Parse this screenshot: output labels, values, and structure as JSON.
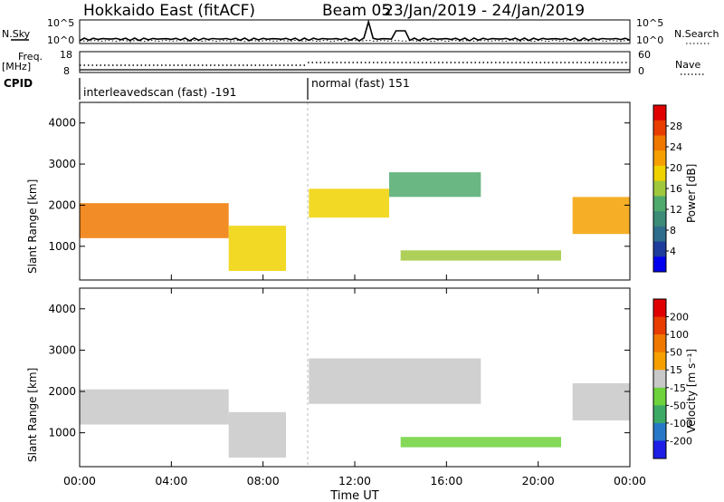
{
  "header": {
    "title": "Hokkaido East (fitACF)",
    "beam": "Beam 05",
    "date_range": "23/Jan/2019 - 24/Jan/2019"
  },
  "top_panel": {
    "left_label": "N.Sky",
    "right_label": "N.Search",
    "left_ticks": [
      "10^5",
      "10^0"
    ],
    "right_ticks": [
      "10^5",
      "10^0"
    ]
  },
  "freq_panel": {
    "left_label_1": "Freq.",
    "left_label_2": "[MHz]",
    "left_ticks": [
      "18",
      "8"
    ],
    "right_label": "Nave",
    "right_ticks": [
      "60",
      "0"
    ]
  },
  "cpid": {
    "label": "CPID",
    "segments": [
      "interleavedscan (fast) -191",
      "normal (fast) 151"
    ]
  },
  "x_axis": {
    "title": "Time UT",
    "ticks": [
      "00:00",
      "04:00",
      "08:00",
      "12:00",
      "16:00",
      "20:00",
      "00:00"
    ]
  },
  "power_panel": {
    "ylabel": "Slant Range [km]",
    "yticks": [
      "1000",
      "2000",
      "3000",
      "4000"
    ],
    "colorbar_label": "Power [dB]",
    "colorbar_ticks": [
      "4",
      "8",
      "12",
      "16",
      "20",
      "24",
      "28"
    ]
  },
  "velocity_panel": {
    "ylabel": "Slant Range [km]",
    "yticks": [
      "1000",
      "2000",
      "3000",
      "4000"
    ],
    "colorbar_label": "Velocity [m s⁻¹]",
    "colorbar_ticks": [
      "200",
      "100",
      "50",
      "15",
      "-15",
      "-50",
      "-100",
      "-200"
    ]
  },
  "chart_data": [
    {
      "type": "heatmap",
      "title": "",
      "xlabel": "Time UT",
      "ylabel": "Slant Range [km]",
      "xlim": [
        0,
        24
      ],
      "ylim": [
        180,
        4500
      ],
      "colorbar": "Power [dB]",
      "colorbar_range": [
        0,
        32
      ],
      "colorbar_colors": [
        "#0000ee",
        "#1e3c9b",
        "#2e6e8c",
        "#3c8c78",
        "#50aa6e",
        "#a0c83c",
        "#f0d200",
        "#f5a000",
        "#f07800",
        "#e83c00",
        "#e00000"
      ],
      "regions": [
        {
          "t0": 0.0,
          "t1": 6.5,
          "r0": 1200,
          "r1": 2050,
          "value": 26
        },
        {
          "t0": 6.5,
          "t1": 9.0,
          "r0": 400,
          "r1": 1500,
          "value": 20
        },
        {
          "t0": 10.0,
          "t1": 13.5,
          "r0": 1700,
          "r1": 2400,
          "value": 20
        },
        {
          "t0": 13.5,
          "t1": 17.5,
          "r0": 2200,
          "r1": 2800,
          "value": 12
        },
        {
          "t0": 14.0,
          "t1": 21.0,
          "r0": 650,
          "r1": 900,
          "value": 16
        },
        {
          "t0": 21.5,
          "t1": 24.0,
          "r0": 1300,
          "r1": 2200,
          "value": 22
        }
      ]
    },
    {
      "type": "heatmap",
      "title": "",
      "xlabel": "Time UT",
      "ylabel": "Slant Range [km]",
      "xlim": [
        0,
        24
      ],
      "ylim": [
        180,
        4500
      ],
      "colorbar": "Velocity [m s⁻¹]",
      "colorbar_range": [
        -250,
        250
      ],
      "colorbar_colors": [
        "#1e1ee6",
        "#2878c8",
        "#3caa64",
        "#6ed23c",
        "#c8c8c8",
        "#f5a000",
        "#f07800",
        "#e83c00",
        "#e00000"
      ],
      "regions": [
        {
          "t0": 0.0,
          "t1": 6.5,
          "r0": 1200,
          "r1": 2050,
          "value": 0
        },
        {
          "t0": 6.5,
          "t1": 9.0,
          "r0": 400,
          "r1": 1500,
          "value": 0
        },
        {
          "t0": 10.0,
          "t1": 17.5,
          "r0": 1700,
          "r1": 2800,
          "value": 0
        },
        {
          "t0": 14.0,
          "t1": 21.0,
          "r0": 650,
          "r1": 900,
          "value": -40
        },
        {
          "t0": 21.5,
          "t1": 24.0,
          "r0": 1300,
          "r1": 2200,
          "value": 20
        }
      ]
    }
  ]
}
